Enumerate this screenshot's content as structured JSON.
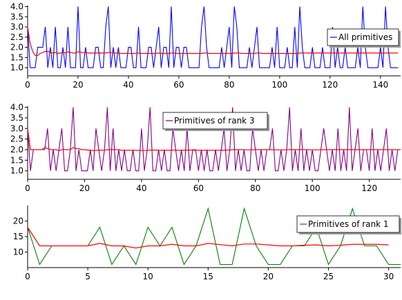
{
  "chart_data": [
    {
      "type": "line",
      "xlim": [
        0,
        148
      ],
      "ylim": [
        0.6,
        4.05
      ],
      "xticks": [
        0,
        20,
        40,
        60,
        80,
        100,
        120,
        140
      ],
      "yticks": [
        1.0,
        1.5,
        2.0,
        2.5,
        3.0,
        3.5,
        4.0
      ],
      "ytick_labels": [
        "1.0",
        "1.5",
        "2.0",
        "2.5",
        "3.0",
        "3.5",
        "4.0"
      ],
      "legend_position": "right",
      "grid": false,
      "series": [
        {
          "name": "All primitives",
          "color": "#0000ff",
          "values": [
            3,
            1,
            1,
            1,
            2,
            2,
            2,
            3,
            1,
            2,
            1,
            3,
            1,
            1,
            2,
            1,
            3,
            1,
            1,
            1,
            4,
            1,
            1,
            2,
            1,
            1,
            1,
            2,
            2,
            1,
            1,
            3,
            4,
            1,
            2,
            1,
            2,
            1,
            1,
            1,
            2,
            2,
            1,
            1,
            3,
            1,
            1,
            1,
            2,
            2,
            1,
            2,
            3,
            1,
            2,
            2,
            1,
            4,
            1,
            2,
            2,
            1,
            2,
            2,
            1,
            1,
            1,
            1,
            1,
            3,
            4,
            2,
            1,
            1,
            1,
            1,
            1,
            2,
            1,
            2,
            3,
            1,
            4,
            3,
            1,
            1,
            1,
            1,
            2,
            1,
            2,
            3,
            1,
            1,
            1,
            1,
            1,
            2,
            1,
            3,
            1,
            1,
            1,
            2,
            1,
            1,
            3,
            1,
            4,
            2,
            1,
            1,
            1,
            2,
            1,
            1,
            1,
            2,
            1,
            1,
            1,
            3,
            1,
            2,
            1,
            1,
            2,
            1,
            1,
            1,
            1,
            2,
            1,
            4,
            2,
            1,
            1,
            1,
            1,
            1,
            2,
            1,
            4,
            2,
            1,
            1,
            1,
            1
          ]
        },
        {
          "name": "",
          "color": "#ff0000",
          "values": [
            3,
            2.2,
            1.8,
            1.6,
            1.6,
            1.7,
            1.75,
            1.8,
            1.8,
            1.75,
            1.72,
            1.75,
            1.7,
            1.72,
            1.75,
            1.72,
            1.78,
            1.75,
            1.72,
            1.72,
            1.78,
            1.76,
            1.74,
            1.75,
            1.72,
            1.72,
            1.72,
            1.72,
            1.73,
            1.72,
            1.72,
            1.72,
            1.75,
            1.74,
            1.74,
            1.72,
            1.72,
            1.7,
            1.7,
            1.7,
            1.7,
            1.7,
            1.7,
            1.7,
            1.72,
            1.7,
            1.7,
            1.7,
            1.7,
            1.7,
            1.7,
            1.7,
            1.72,
            1.7,
            1.7,
            1.7,
            1.7,
            1.72,
            1.72,
            1.7,
            1.7,
            1.7,
            1.7,
            1.7,
            1.7,
            1.7,
            1.7,
            1.7,
            1.7,
            1.7,
            1.72,
            1.72,
            1.7,
            1.7,
            1.7,
            1.7,
            1.7,
            1.7,
            1.7,
            1.7,
            1.7,
            1.7,
            1.72,
            1.72,
            1.72,
            1.7,
            1.7,
            1.7,
            1.7,
            1.7,
            1.7,
            1.72,
            1.72,
            1.7,
            1.7,
            1.7,
            1.7,
            1.7,
            1.7,
            1.7,
            1.7,
            1.7,
            1.7,
            1.7,
            1.7,
            1.7,
            1.7,
            1.7,
            1.72,
            1.72,
            1.72,
            1.72,
            1.72,
            1.72,
            1.72,
            1.72,
            1.72,
            1.72,
            1.72,
            1.72,
            1.72,
            1.72,
            1.72,
            1.72,
            1.72,
            1.72,
            1.72,
            1.72,
            1.72,
            1.72,
            1.72,
            1.72,
            1.72,
            1.72,
            1.72,
            1.72,
            1.72,
            1.72,
            1.72,
            1.72,
            1.72,
            1.72,
            1.72,
            1.72,
            1.72,
            1.72,
            1.72,
            1.72
          ]
        }
      ]
    },
    {
      "type": "line",
      "xlim": [
        0,
        131
      ],
      "ylim": [
        0.6,
        4.05
      ],
      "xticks": [
        0,
        20,
        40,
        60,
        80,
        100,
        120
      ],
      "yticks": [
        1.0,
        1.5,
        2.0,
        2.5,
        3.0,
        3.5,
        4.0
      ],
      "ytick_labels": [
        "1.0",
        "1.5",
        "2.0",
        "2.5",
        "3.0",
        "3.5",
        "4.0"
      ],
      "legend_position": "upper-center",
      "grid": false,
      "series": [
        {
          "name": "Primitives of rank 3",
          "color": "#800080",
          "values": [
            3,
            1,
            2,
            2,
            2,
            2,
            2,
            3,
            1,
            2,
            1,
            2,
            3,
            1,
            1,
            2,
            4,
            1,
            2,
            1,
            1,
            1,
            2,
            1,
            3,
            2,
            1,
            2,
            4,
            1,
            3,
            1,
            2,
            1,
            2,
            1,
            1,
            2,
            1,
            1,
            3,
            1,
            2,
            4,
            1,
            1,
            2,
            1,
            2,
            1,
            1,
            3,
            2,
            1,
            2,
            1,
            3,
            1,
            2,
            2,
            1,
            2,
            1,
            2,
            1,
            1,
            2,
            1,
            2,
            3,
            1,
            2,
            4,
            1,
            2,
            1,
            2,
            1,
            1,
            3,
            2,
            1,
            2,
            1,
            2,
            2,
            3,
            1,
            1,
            2,
            1,
            2,
            4,
            1,
            2,
            1,
            3,
            1,
            2,
            1,
            2,
            1,
            1,
            2,
            3,
            2,
            1,
            2,
            1,
            3,
            1,
            2,
            1,
            4,
            1,
            2,
            3,
            1,
            2,
            2,
            1,
            3,
            1,
            2,
            1,
            2,
            3,
            1,
            2,
            1,
            2,
            2
          ]
        },
        {
          "name": "",
          "color": "#ff0000",
          "values": [
            3,
            2,
            2,
            2,
            2,
            2,
            2.1,
            2.05,
            2,
            2,
            2,
            1.95,
            2,
            2,
            2,
            2,
            2.1,
            2.05,
            2.05,
            2,
            2,
            1.98,
            1.98,
            1.95,
            1.97,
            1.98,
            1.97,
            1.97,
            2,
            2,
            2,
            2,
            2,
            1.97,
            1.97,
            1.97,
            1.97,
            1.97,
            1.97,
            1.96,
            1.96,
            1.96,
            1.96,
            1.98,
            1.98,
            1.98,
            1.97,
            1.97,
            1.97,
            1.97,
            1.97,
            1.98,
            1.98,
            1.97,
            1.97,
            1.97,
            1.98,
            1.98,
            1.98,
            1.97,
            1.97,
            1.97,
            1.97,
            1.97,
            1.97,
            1.97,
            1.97,
            1.97,
            1.97,
            1.98,
            1.98,
            1.98,
            2,
            2,
            2,
            2,
            2,
            1.99,
            1.99,
            1.99,
            2,
            2,
            2,
            2,
            2,
            2,
            2,
            1.99,
            1.99,
            1.99,
            1.99,
            1.99,
            2,
            2,
            2,
            2,
            2,
            2,
            2,
            1.99,
            1.99,
            1.99,
            1.99,
            1.99,
            2,
            2,
            2,
            2,
            2,
            2,
            2,
            2,
            2,
            2,
            2,
            2,
            2,
            2,
            2,
            2,
            2,
            2,
            2,
            2,
            2,
            2,
            2,
            2,
            2,
            2,
            2,
            2
          ]
        }
      ]
    },
    {
      "type": "line",
      "xlim": [
        0,
        31
      ],
      "ylim": [
        5,
        25
      ],
      "xticks": [
        0,
        5,
        10,
        15,
        20,
        25,
        30
      ],
      "yticks": [
        10,
        15,
        20
      ],
      "ytick_labels": [
        "10",
        "15",
        "20"
      ],
      "legend_position": "right",
      "grid": false,
      "series": [
        {
          "name": "Primitives of rank 1",
          "color": "#008000",
          "values": [
            18,
            6,
            12,
            12,
            12,
            12,
            18,
            6,
            12,
            6,
            18,
            12,
            18,
            6,
            12,
            24,
            6,
            6,
            24,
            12,
            6,
            6,
            12,
            12,
            18,
            6,
            12,
            24,
            12,
            12,
            6,
            6
          ]
        },
        {
          "name": "",
          "color": "#ff0000",
          "values": [
            18,
            12,
            12,
            12,
            12,
            12,
            12.8,
            12,
            12,
            11.3,
            12,
            12,
            12.5,
            12,
            12,
            12.8,
            12.4,
            12,
            12.6,
            12.6,
            12.3,
            12,
            12,
            12.2,
            12.3,
            12,
            12.2,
            12.5,
            12.5,
            12.5,
            12.3
          ]
        }
      ]
    }
  ]
}
